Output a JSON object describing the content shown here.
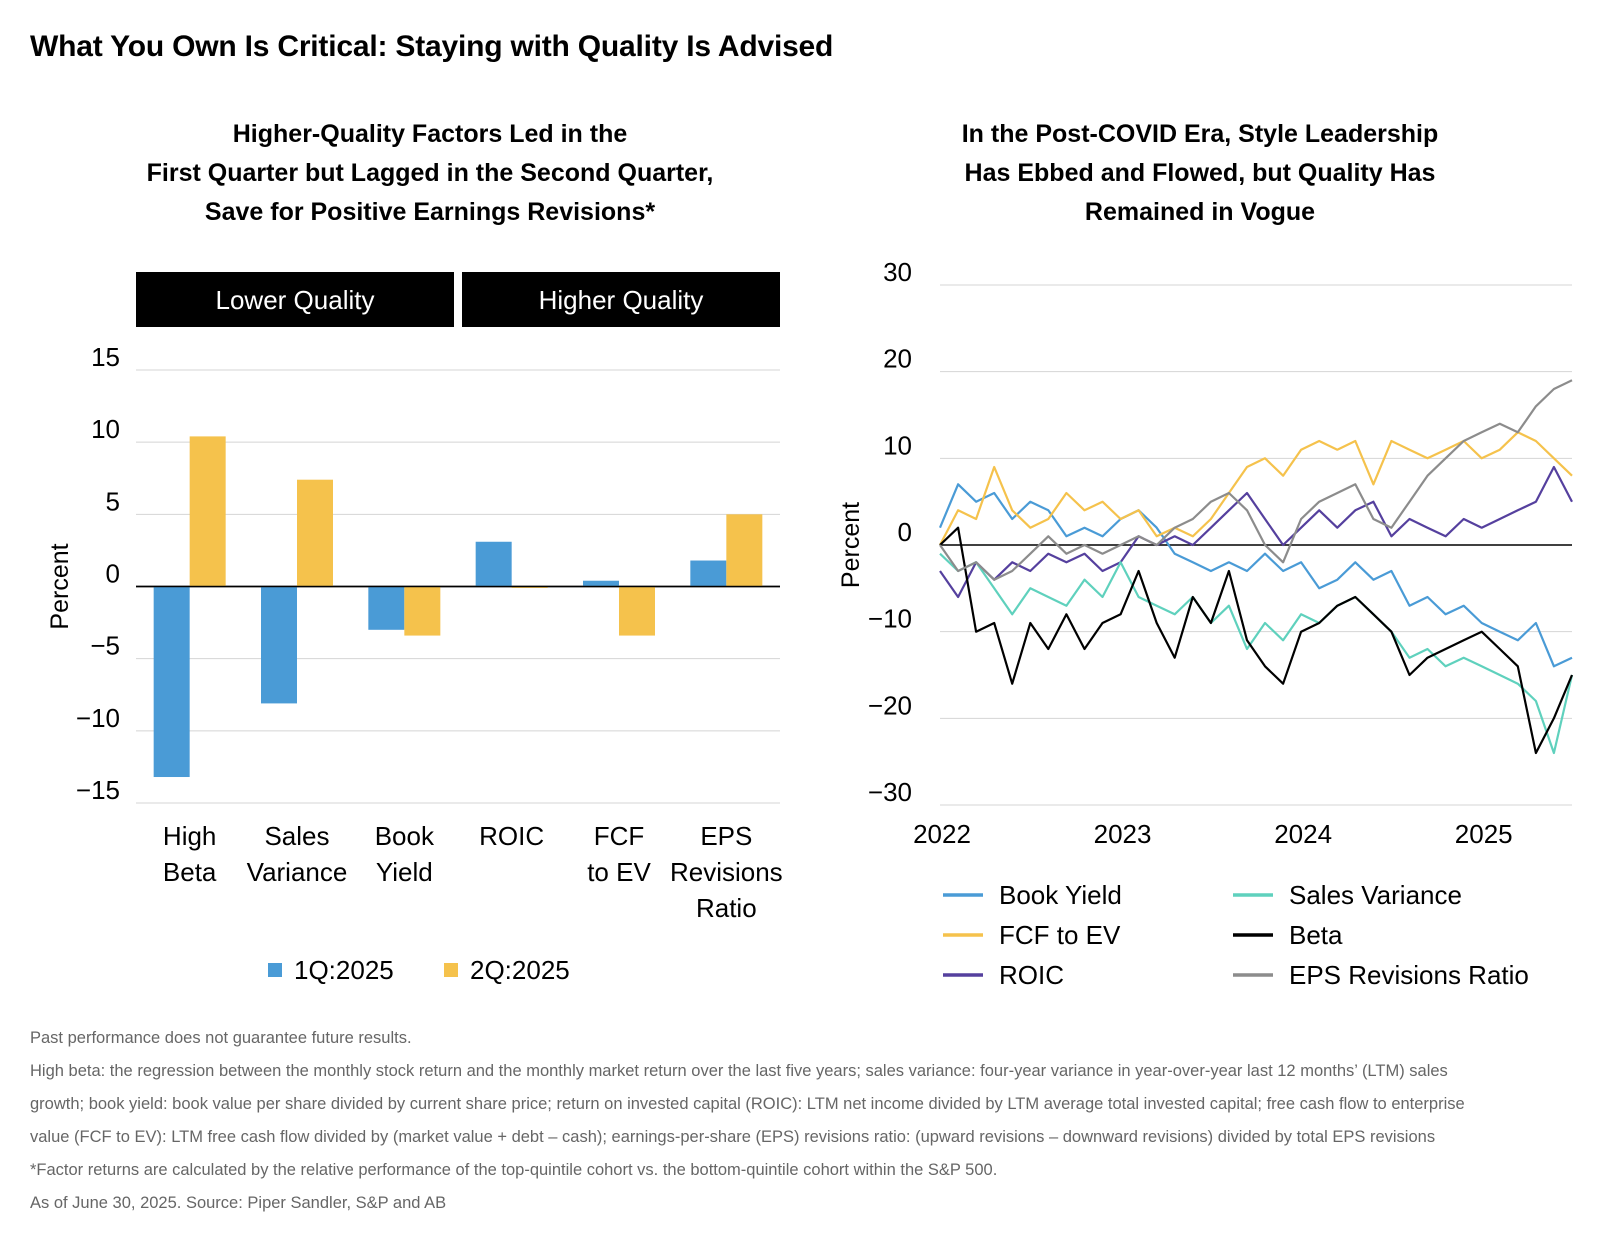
{
  "title": "What You Own Is Critical: Staying with Quality Is Advised",
  "colors": {
    "q1": "#4a9bd6",
    "q2": "#f5c24c",
    "book_yield": "#4a9bd6",
    "fcf_to_ev": "#f5c24c",
    "roic": "#55409e",
    "sales_variance": "#5fd1bd",
    "beta": "#000000",
    "eps_revisions_ratio": "#8c8c8c",
    "grid": "#d4d4d4",
    "band": "#000000"
  },
  "chart_data": [
    {
      "type": "bar",
      "title": [
        "Higher-Quality Factors Led in the",
        "First Quarter but Lagged in the Second Quarter,",
        "Save for Positive Earnings Revisions*"
      ],
      "group_labels": [
        "Lower Quality",
        "Higher Quality"
      ],
      "categories": [
        [
          "High",
          "Beta"
        ],
        [
          "Sales",
          "Variance"
        ],
        [
          "Book",
          "Yield"
        ],
        [
          "ROIC"
        ],
        [
          "FCF",
          "to EV"
        ],
        [
          "EPS",
          "Revisions",
          "Ratio"
        ]
      ],
      "ylabel": "Percent",
      "ylim": [
        -15,
        15
      ],
      "yticks": [
        15,
        10,
        5,
        0,
        -5,
        -10,
        -15
      ],
      "ytick_labels": [
        "15",
        "10",
        "5",
        "0",
        "−5",
        "−10",
        "−15"
      ],
      "grid": true,
      "legend_position": "bottom",
      "series": [
        {
          "name": "1Q:2025",
          "values": [
            -13.2,
            -8.1,
            -3.0,
            3.1,
            0.4,
            1.8
          ]
        },
        {
          "name": "2Q:2025",
          "values": [
            10.4,
            7.4,
            -3.4,
            -0.1,
            -3.4,
            5.0
          ]
        }
      ]
    },
    {
      "type": "line",
      "title": [
        "In the Post-COVID Era, Style Leadership",
        "Has Ebbed and Flowed, but Quality Has",
        "Remained in Vogue"
      ],
      "ylabel": "Percent",
      "ylim": [
        -30,
        30
      ],
      "yticks": [
        30,
        20,
        10,
        0,
        -10,
        -20,
        -30
      ],
      "ytick_labels": [
        "30",
        "20",
        "10",
        "0",
        "−10",
        "−20",
        "−30"
      ],
      "xlim": [
        2022.0,
        2025.5
      ],
      "xticks": [
        2022,
        2023,
        2024,
        2025
      ],
      "xtick_labels": [
        "2022",
        "2023",
        "2024",
        "2025"
      ],
      "grid": true,
      "legend_position": "bottom",
      "series": [
        {
          "name": "Book Yield",
          "x": [
            2022.0,
            2022.1,
            2022.2,
            2022.3,
            2022.4,
            2022.5,
            2022.6,
            2022.7,
            2022.8,
            2022.9,
            2023.0,
            2023.1,
            2023.2,
            2023.3,
            2023.4,
            2023.5,
            2023.6,
            2023.7,
            2023.8,
            2023.9,
            2024.0,
            2024.1,
            2024.2,
            2024.3,
            2024.4,
            2024.5,
            2024.6,
            2024.7,
            2024.8,
            2024.9,
            2025.0,
            2025.1,
            2025.2,
            2025.3,
            2025.4,
            2025.5
          ],
          "y": [
            2,
            7,
            5,
            6,
            3,
            5,
            4,
            1,
            2,
            1,
            3,
            4,
            2,
            -1,
            -2,
            -3,
            -2,
            -3,
            -1,
            -3,
            -2,
            -5,
            -4,
            -2,
            -4,
            -3,
            -7,
            -6,
            -8,
            -7,
            -9,
            -10,
            -11,
            -9,
            -14,
            -13
          ]
        },
        {
          "name": "FCF to EV",
          "x": [
            2022.0,
            2022.1,
            2022.2,
            2022.3,
            2022.4,
            2022.5,
            2022.6,
            2022.7,
            2022.8,
            2022.9,
            2023.0,
            2023.1,
            2023.2,
            2023.3,
            2023.4,
            2023.5,
            2023.6,
            2023.7,
            2023.8,
            2023.9,
            2024.0,
            2024.1,
            2024.2,
            2024.3,
            2024.4,
            2024.5,
            2024.6,
            2024.7,
            2024.8,
            2024.9,
            2025.0,
            2025.1,
            2025.2,
            2025.3,
            2025.4,
            2025.5
          ],
          "y": [
            0,
            4,
            3,
            9,
            4,
            2,
            3,
            6,
            4,
            5,
            3,
            4,
            1,
            2,
            1,
            3,
            6,
            9,
            10,
            8,
            11,
            12,
            11,
            12,
            7,
            12,
            11,
            10,
            11,
            12,
            10,
            11,
            13,
            12,
            10,
            8
          ]
        },
        {
          "name": "ROIC",
          "x": [
            2022.0,
            2022.1,
            2022.2,
            2022.3,
            2022.4,
            2022.5,
            2022.6,
            2022.7,
            2022.8,
            2022.9,
            2023.0,
            2023.1,
            2023.2,
            2023.3,
            2023.4,
            2023.5,
            2023.6,
            2023.7,
            2023.8,
            2023.9,
            2024.0,
            2024.1,
            2024.2,
            2024.3,
            2024.4,
            2024.5,
            2024.6,
            2024.7,
            2024.8,
            2024.9,
            2025.0,
            2025.1,
            2025.2,
            2025.3,
            2025.4,
            2025.5
          ],
          "y": [
            -3,
            -6,
            -2,
            -4,
            -2,
            -3,
            -1,
            -2,
            -1,
            -3,
            -2,
            1,
            0,
            1,
            0,
            2,
            4,
            6,
            3,
            0,
            2,
            4,
            2,
            4,
            5,
            1,
            3,
            2,
            1,
            3,
            2,
            3,
            4,
            5,
            9,
            5
          ]
        },
        {
          "name": "Sales Variance",
          "x": [
            2022.0,
            2022.1,
            2022.2,
            2022.3,
            2022.4,
            2022.5,
            2022.6,
            2022.7,
            2022.8,
            2022.9,
            2023.0,
            2023.1,
            2023.2,
            2023.3,
            2023.4,
            2023.5,
            2023.6,
            2023.7,
            2023.8,
            2023.9,
            2024.0,
            2024.1,
            2024.2,
            2024.3,
            2024.4,
            2024.5,
            2024.6,
            2024.7,
            2024.8,
            2024.9,
            2025.0,
            2025.1,
            2025.2,
            2025.3,
            2025.4,
            2025.5
          ],
          "y": [
            -1,
            -3,
            -2,
            -5,
            -8,
            -5,
            -6,
            -7,
            -4,
            -6,
            -2,
            -6,
            -7,
            -8,
            -6,
            -9,
            -7,
            -12,
            -9,
            -11,
            -8,
            -9,
            -7,
            -6,
            -8,
            -10,
            -13,
            -12,
            -14,
            -13,
            -14,
            -15,
            -16,
            -18,
            -24,
            -15
          ]
        },
        {
          "name": "Beta",
          "x": [
            2022.0,
            2022.1,
            2022.2,
            2022.3,
            2022.4,
            2022.5,
            2022.6,
            2022.7,
            2022.8,
            2022.9,
            2023.0,
            2023.1,
            2023.2,
            2023.3,
            2023.4,
            2023.5,
            2023.6,
            2023.7,
            2023.8,
            2023.9,
            2024.0,
            2024.1,
            2024.2,
            2024.3,
            2024.4,
            2024.5,
            2024.6,
            2024.7,
            2024.8,
            2024.9,
            2025.0,
            2025.1,
            2025.2,
            2025.3,
            2025.4,
            2025.5
          ],
          "y": [
            0,
            2,
            -10,
            -9,
            -16,
            -9,
            -12,
            -8,
            -12,
            -9,
            -8,
            -3,
            -9,
            -13,
            -6,
            -9,
            -3,
            -11,
            -14,
            -16,
            -10,
            -9,
            -7,
            -6,
            -8,
            -10,
            -15,
            -13,
            -12,
            -11,
            -10,
            -12,
            -14,
            -24,
            -20,
            -15
          ]
        },
        {
          "name": "EPS Revisions Ratio",
          "x": [
            2022.0,
            2022.1,
            2022.2,
            2022.3,
            2022.4,
            2022.5,
            2022.6,
            2022.7,
            2022.8,
            2022.9,
            2023.0,
            2023.1,
            2023.2,
            2023.3,
            2023.4,
            2023.5,
            2023.6,
            2023.7,
            2023.8,
            2023.9,
            2024.0,
            2024.1,
            2024.2,
            2024.3,
            2024.4,
            2024.5,
            2024.6,
            2024.7,
            2024.8,
            2024.9,
            2025.0,
            2025.1,
            2025.2,
            2025.3,
            2025.4,
            2025.5
          ],
          "y": [
            0,
            -3,
            -2,
            -4,
            -3,
            -1,
            1,
            -1,
            0,
            -1,
            0,
            1,
            0,
            2,
            3,
            5,
            6,
            4,
            0,
            -2,
            3,
            5,
            6,
            7,
            3,
            2,
            5,
            8,
            10,
            12,
            13,
            14,
            13,
            16,
            18,
            19
          ]
        }
      ]
    }
  ],
  "footnotes": [
    "Past performance does not guarantee future results.",
    "High beta: the regression between the monthly stock return and the monthly market return over the last five years; sales variance: four-year variance in year-over-year last 12 months’ (LTM) sales",
    "growth; book yield: book value per share divided by current share price; return on invested capital (ROIC): LTM net income divided by LTM average total invested capital; free cash flow to enterprise",
    "value (FCF to EV): LTM free cash flow divided by (market value + debt – cash); earnings-per-share (EPS) revisions ratio: (upward revisions – downward revisions) divided by total EPS revisions",
    "*Factor returns are calculated by the relative performance of the top-quintile cohort vs. the bottom-quintile cohort within the S&P 500.",
    "As of June 30, 2025. Source: Piper Sandler, S&P and AB"
  ]
}
